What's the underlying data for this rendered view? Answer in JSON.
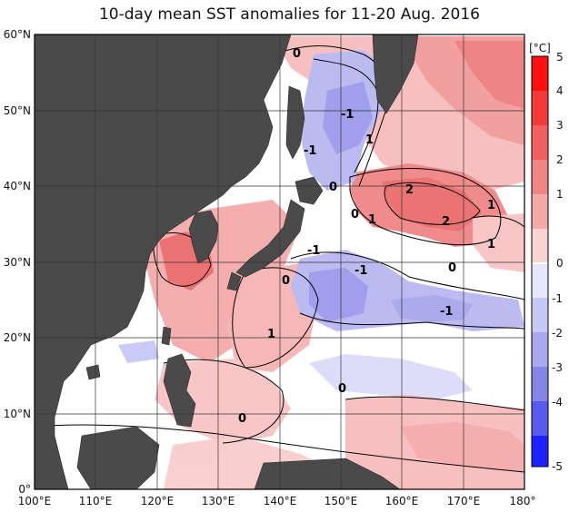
{
  "title": "10-day mean SST anomalies for 11-20 Aug. 2016",
  "map": {
    "lon_labels": [
      "100°E",
      "110°E",
      "120°E",
      "130°E",
      "140°E",
      "150°E",
      "160°E",
      "170°E",
      "180°"
    ],
    "lat_labels": [
      "60°N",
      "50°N",
      "40°N",
      "30°N",
      "20°N",
      "10°N",
      "0°"
    ],
    "contour_labels": [
      "0",
      "-1",
      "-1",
      "0",
      "1",
      "0",
      "1",
      "2",
      "2",
      "1",
      "1",
      "-1",
      "0",
      "-1",
      "0",
      "-1",
      "1",
      "0",
      "0"
    ]
  },
  "colorbar": {
    "unit": "[°C]",
    "labels": [
      "5",
      "4",
      "3",
      "2",
      "1",
      "0",
      "-1",
      "-2",
      "-3",
      "-4",
      "-5"
    ],
    "colors": {
      "pos5": "#ff1010",
      "pos4": "#f53a3a",
      "pos3": "#f26060",
      "pos2": "#f08585",
      "pos1": "#f4aaaa",
      "pos0": "#fad3d3",
      "neg0": "#e6e6ff",
      "neg1": "#c8c8f6",
      "neg2": "#a8a8ee",
      "neg3": "#8585e6",
      "neg4": "#5a5af0",
      "neg5": "#2020ff"
    }
  },
  "colors": {
    "land": "#4a4a4a",
    "land_edge": "#2a2a2a",
    "grid": "#333333",
    "ocean_neutral": "#ffffff"
  }
}
